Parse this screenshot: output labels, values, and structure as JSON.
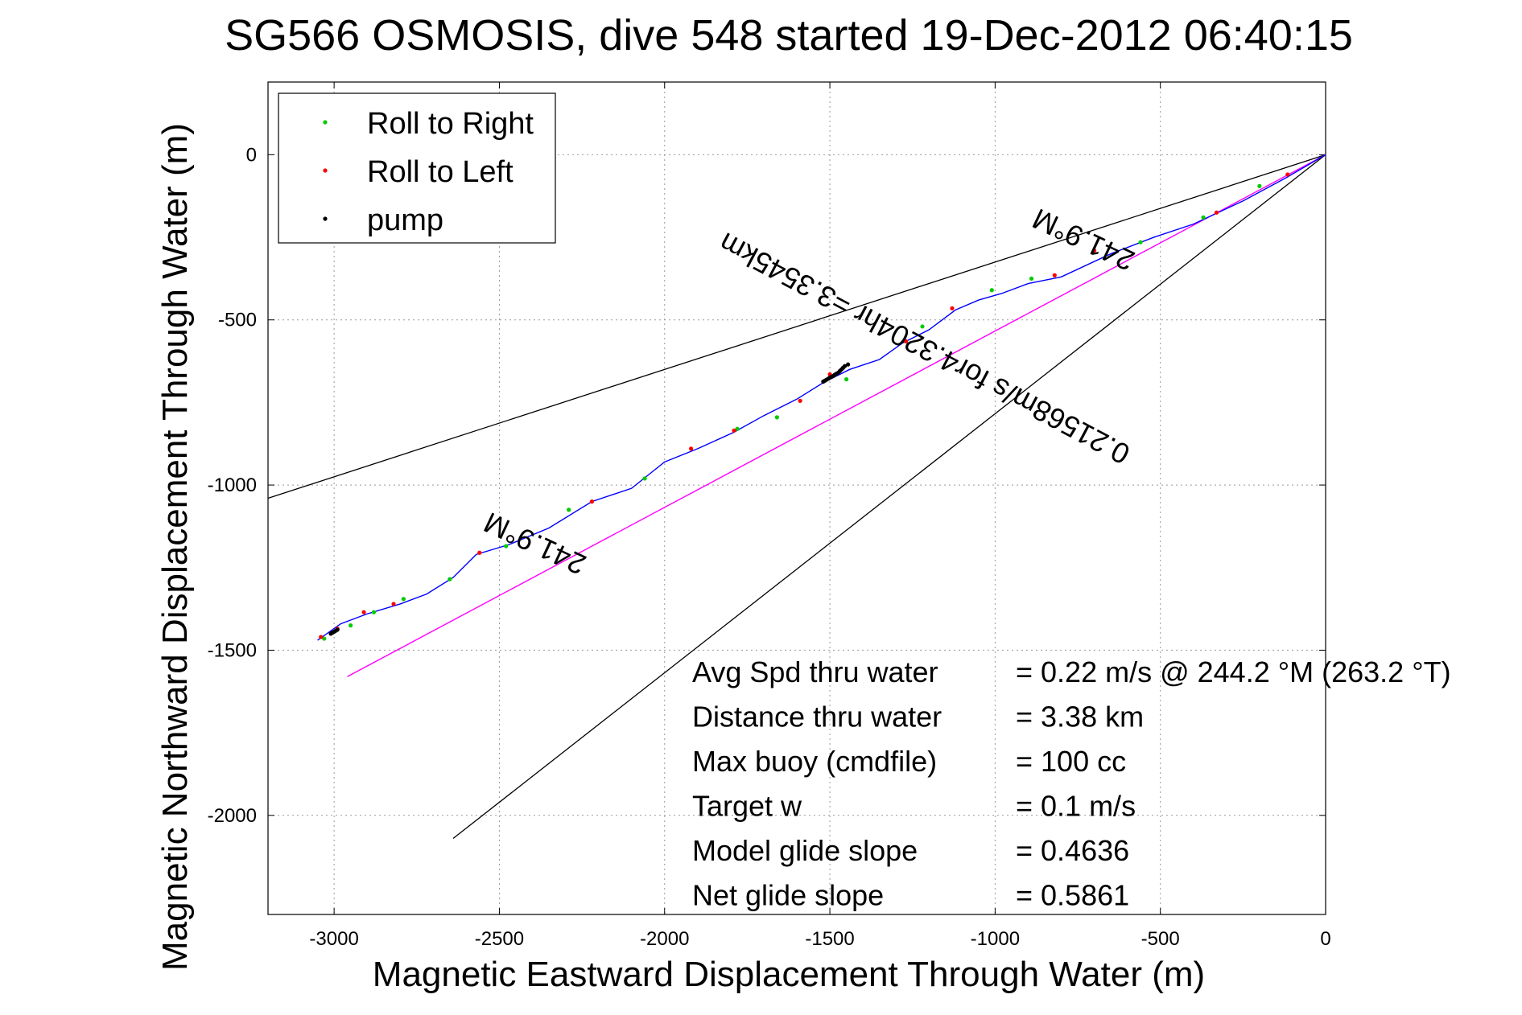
{
  "chart_data": {
    "type": "line",
    "title": "SG566 OSMOSIS, dive 548 started 19-Dec-2012 06:40:15",
    "xlabel": "Magnetic Eastward Displacement Through Water (m)",
    "ylabel": "Magnetic Northward Displacement Through Water (m)",
    "xlim": [
      -3200,
      0
    ],
    "ylim": [
      -2300,
      220
    ],
    "xticks": [
      -3000,
      -2500,
      -2000,
      -1500,
      -1000,
      -500,
      0
    ],
    "yticks": [
      0,
      -500,
      -1000,
      -1500,
      -2000
    ],
    "xtick_labels": [
      "-3000",
      "-2500",
      "-2000",
      "-1500",
      "-1000",
      "-500",
      "0"
    ],
    "ytick_labels": [
      "0",
      "-500",
      "-1000",
      "-1500",
      "-2000"
    ],
    "grid": true,
    "legend": {
      "placement": "top-left",
      "entries": [
        {
          "label": "Roll to Right",
          "color": "#00cc00"
        },
        {
          "label": "Roll to Left",
          "color": "#ff0000"
        },
        {
          "label": "pump",
          "color": "#000000"
        }
      ]
    },
    "track": {
      "name": "glider track",
      "color": "#0000ff",
      "x": [
        0,
        -120,
        -250,
        -400,
        -520,
        -650,
        -800,
        -900,
        -980,
        -1050,
        -1120,
        -1200,
        -1280,
        -1350,
        -1440,
        -1520,
        -1600,
        -1700,
        -1790,
        -1900,
        -2000,
        -2050,
        -2100,
        -2220,
        -2350,
        -2470,
        -2570,
        -2640,
        -2720,
        -2800,
        -2900,
        -2980,
        -3050
      ],
      "y": [
        0,
        -70,
        -140,
        -210,
        -250,
        -300,
        -370,
        -390,
        -420,
        -440,
        -470,
        -530,
        -570,
        -620,
        -650,
        -690,
        -740,
        -790,
        -840,
        -890,
        -930,
        -970,
        -1010,
        -1050,
        -1130,
        -1180,
        -1210,
        -1280,
        -1330,
        -1360,
        -1390,
        -1420,
        -1470
      ]
    },
    "roll_right_points": {
      "x": [
        -200,
        -370,
        -560,
        -890,
        -1010,
        -1220,
        -1450,
        -1660,
        -1780,
        -2060,
        -2290,
        -2480,
        -2650,
        -2790,
        -2880,
        -2950,
        -3030
      ],
      "y": [
        -95,
        -190,
        -265,
        -375,
        -410,
        -520,
        -680,
        -795,
        -830,
        -980,
        -1075,
        -1185,
        -1285,
        -1345,
        -1385,
        -1425,
        -1465
      ]
    },
    "roll_left_points": {
      "x": [
        -115,
        -330,
        -700,
        -820,
        -1130,
        -1270,
        -1500,
        -1590,
        -1790,
        -1920,
        -2220,
        -2560,
        -2820,
        -2910,
        -2990,
        -3040
      ],
      "y": [
        -60,
        -175,
        -290,
        -365,
        -465,
        -565,
        -665,
        -745,
        -835,
        -890,
        -1050,
        -1205,
        -1360,
        -1385,
        -1435,
        -1460
      ]
    },
    "pump_points": {
      "x": [
        -1445,
        -1455,
        -1460,
        -1465,
        -1470,
        -1475,
        -1480,
        -1485,
        -1490,
        -1495,
        -1500,
        -1505,
        -1510,
        -1515,
        -1520,
        -2990,
        -2995,
        -3000,
        -3005,
        -3010
      ],
      "y": [
        -635,
        -640,
        -645,
        -650,
        -655,
        -660,
        -663,
        -666,
        -670,
        -672,
        -675,
        -678,
        -681,
        -684,
        -687,
        -1438,
        -1441,
        -1444,
        -1447,
        -1450
      ]
    },
    "magenta_line": {
      "color": "#ff00ff",
      "x": [
        0,
        -2960
      ],
      "y": [
        0,
        -1580
      ]
    },
    "heading_lines": [
      {
        "name": "upper bound",
        "color": "#000000",
        "x": [
          0,
          -3200
        ],
        "y": [
          0,
          -1040
        ]
      },
      {
        "name": "lower bound",
        "color": "#000000",
        "x": [
          0,
          -2640
        ],
        "y": [
          0,
          -2070
        ]
      }
    ],
    "annotations": [
      {
        "text": "241.9°M",
        "x": -720,
        "y": -230,
        "rotation": -155
      },
      {
        "text": "241.9°M",
        "x": -2380,
        "y": -1150,
        "rotation": -155
      },
      {
        "text": "0.21568m/s for4.3204hr =3.3545km",
        "x": -1200,
        "y": -560,
        "rotation": -152
      }
    ],
    "stats": [
      {
        "label": "Avg Spd thru water",
        "value": "=  0.22 m/s @ 244.2 °M (263.2 °T)"
      },
      {
        "label": "Distance thru water",
        "value": "=  3.38 km"
      },
      {
        "label": "Max buoy (cmdfile)",
        "value": "= 100 cc"
      },
      {
        "label": "Target w",
        "value": "= 0.1 m/s"
      },
      {
        "label": "Model glide slope",
        "value": "= 0.4636"
      },
      {
        "label": "Net glide slope",
        "value": "= 0.5861"
      }
    ]
  }
}
